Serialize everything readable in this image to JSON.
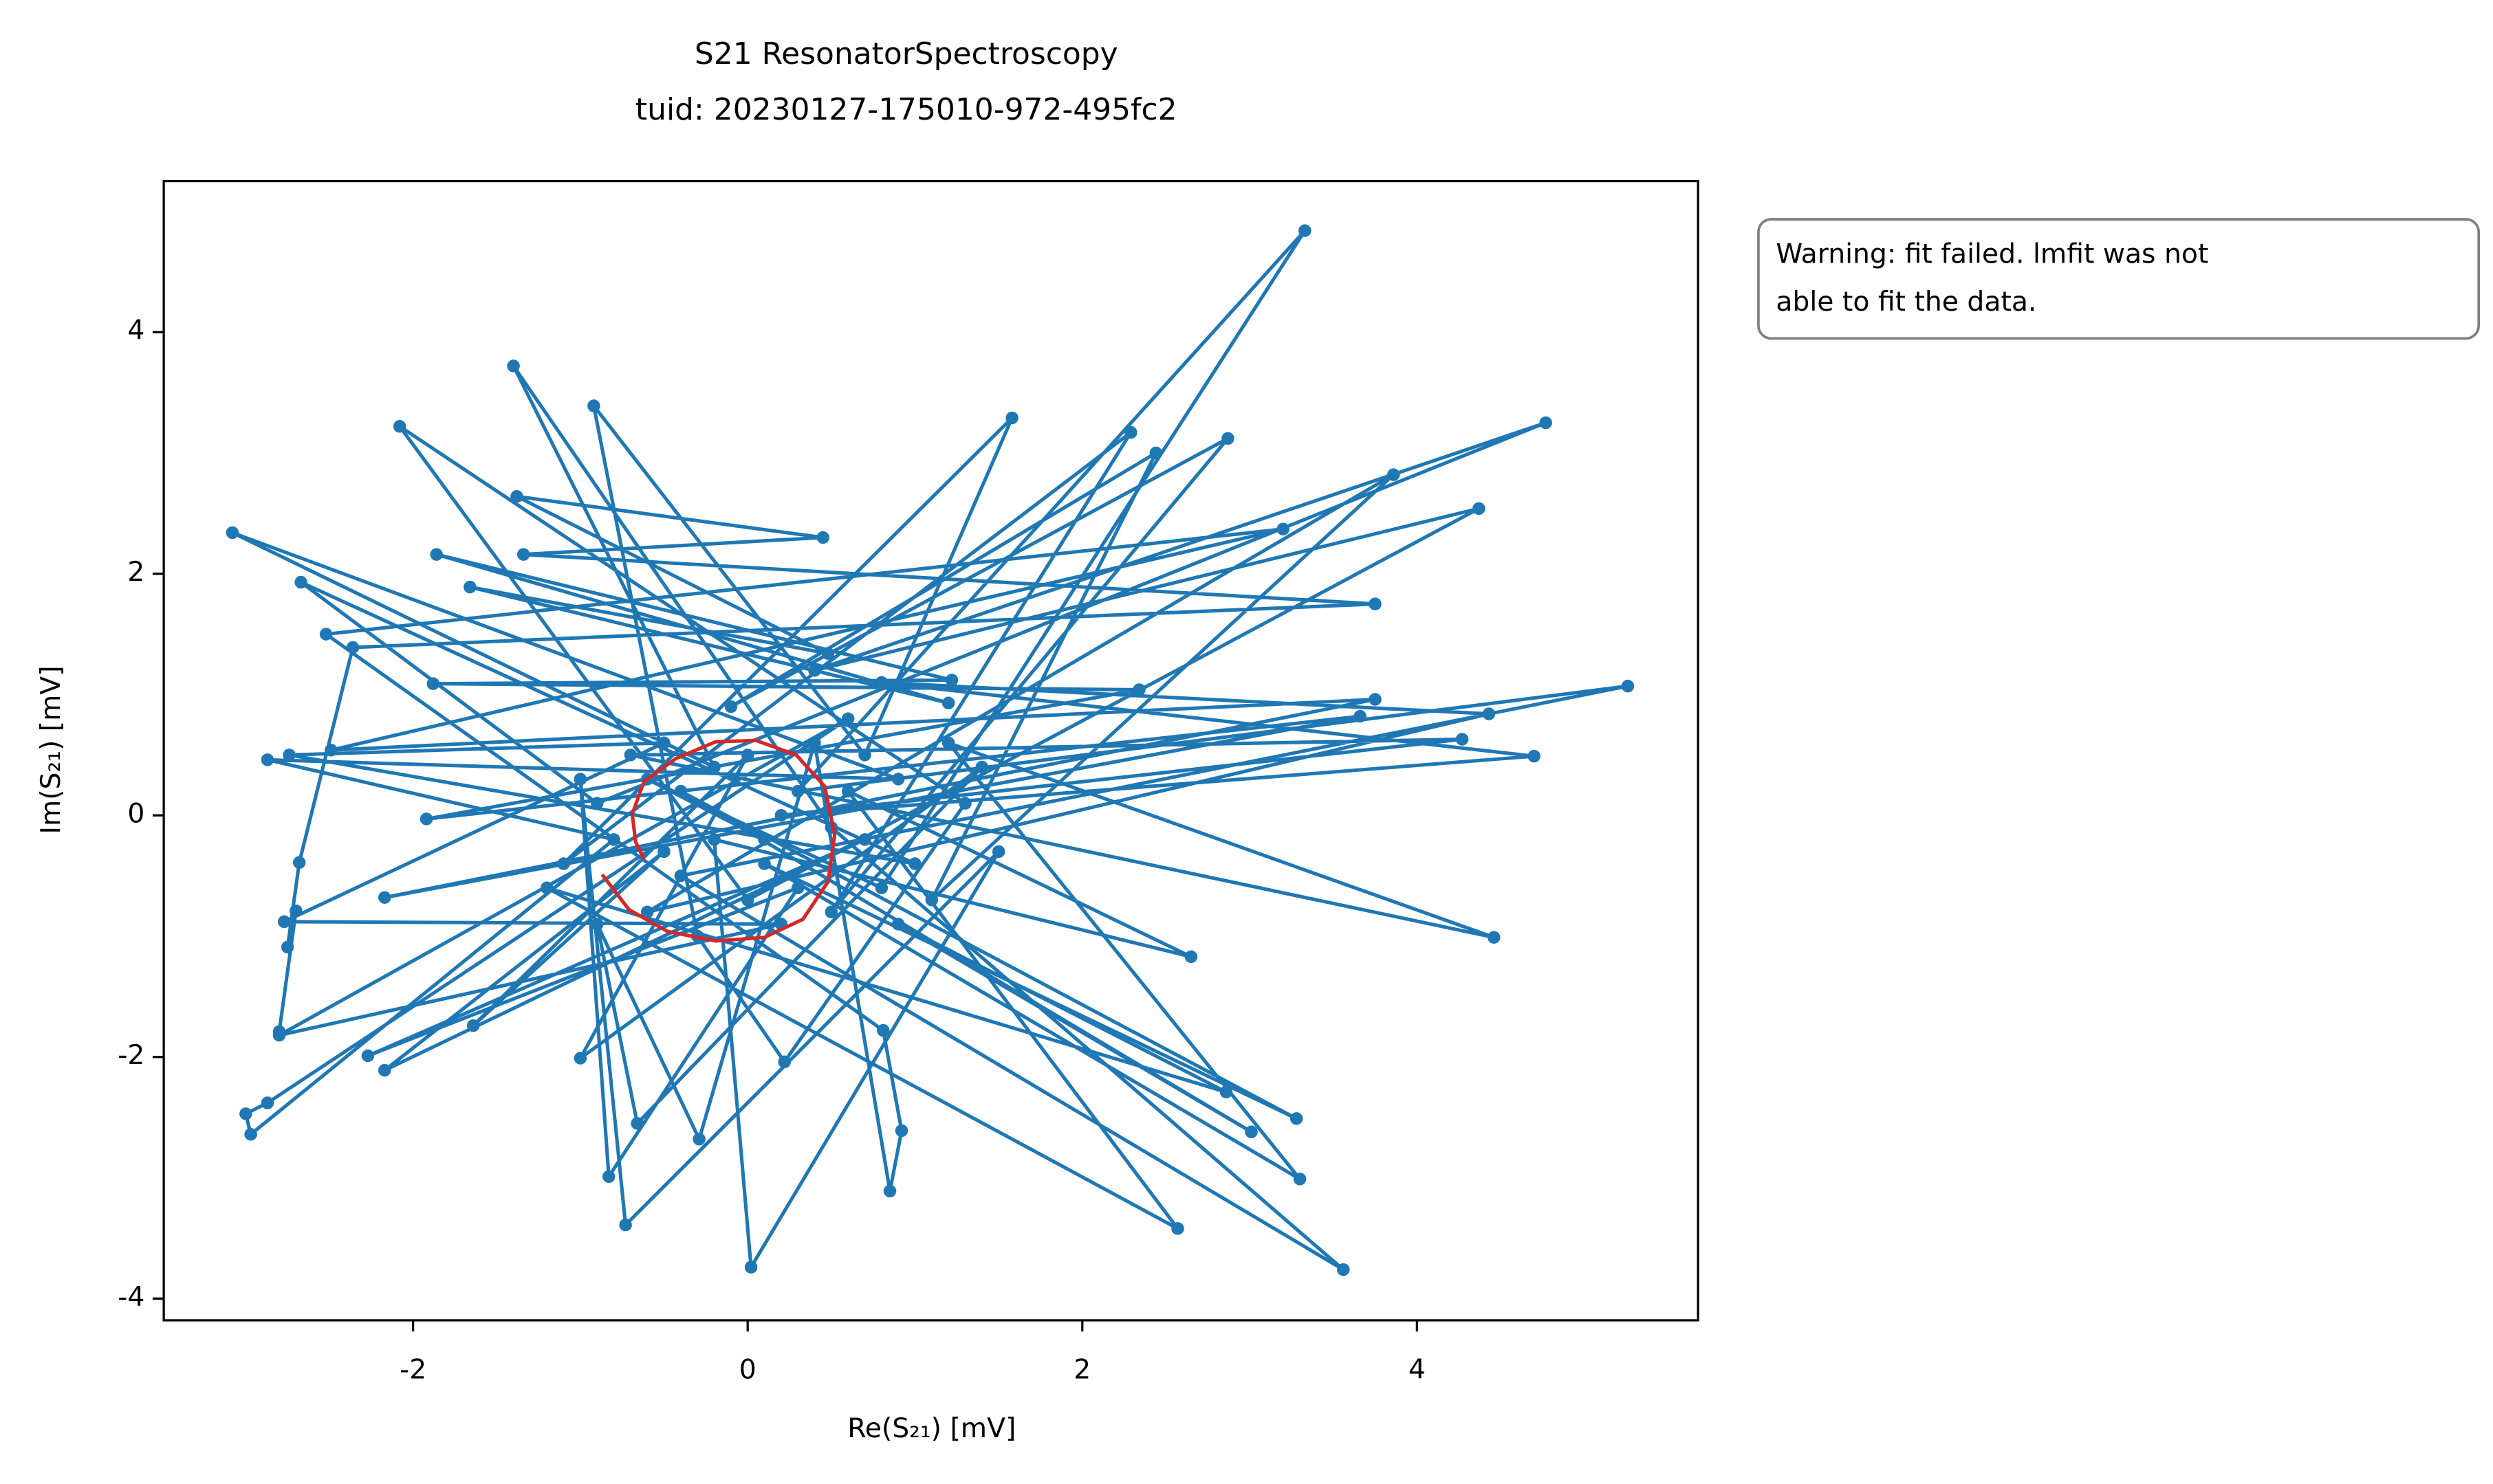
{
  "chart_data": {
    "type": "line",
    "title": "S21 ResonatorSpectroscopy",
    "subtitle": "tuid: 20230127-175010-972-495fc2",
    "xlabel": "Re(S₂₁) [mV]",
    "ylabel": "Im(S₂₁) [mV]",
    "annotation": [
      "Warning: fit failed. lmfit was not",
      "able to fit the data."
    ],
    "xlim": [
      -3.49,
      5.68
    ],
    "ylim": [
      -4.18,
      5.25
    ],
    "xticks": [
      -2,
      0,
      2,
      4
    ],
    "yticks": [
      -4,
      -2,
      0,
      2,
      4
    ],
    "series": [
      {
        "color": "#1f77b4",
        "markers": true,
        "x": [
          0.1,
          -0.6,
          0.8,
          3.33,
          0.3,
          5.26,
          -0.4,
          3.56,
          0.5,
          -1.4,
          -0.2,
          -3.08,
          0.9,
          -2.87,
          -0.8,
          -2.97,
          -3.0,
          -2.87,
          0.6,
          -2.8,
          0.2,
          -2.77,
          -0.5,
          -2.74,
          1.0,
          -2.67,
          -0.9,
          4.77,
          0.4,
          4.37,
          0.0,
          -2.08,
          1.3,
          0.22,
          -0.3,
          -0.92,
          0.7,
          1.58,
          -1.1,
          2.29,
          0.5,
          2.87,
          -0.1,
          2.44,
          1.1,
          3.86,
          -0.6,
          4.43,
          0.8,
          4.7,
          0.2,
          4.27,
          -0.7,
          4.46,
          1.2,
          3.3,
          0.1,
          3.28,
          -0.4,
          3.01,
          0.9,
          2.86,
          -1.2,
          2.57,
          0.6,
          2.65,
          -0.2,
          0.02,
          1.5,
          -0.73,
          -1.0,
          -0.83,
          0.3,
          -2.27,
          0.7,
          -2.17,
          -0.5,
          -1.64,
          0.0,
          -1.0,
          1.4,
          -0.66,
          -0.9,
          -0.29,
          0.4,
          0.85,
          0.92,
          0.81,
          -2.52,
          3.2,
          -2.49,
          3.75,
          -2.17,
          3.66,
          -1.92,
          2.34,
          -1.88,
          1.22,
          -1.86,
          1.2,
          -1.66,
          0.48,
          -1.38,
          0.45,
          -1.34,
          3.75,
          -2.36,
          -2.68,
          -2.75,
          -2.7,
          -2.8
        ],
        "values": [
          -0.2,
          0.3,
          -0.6,
          4.84,
          0.2,
          1.07,
          -0.5,
          -3.76,
          -0.1,
          3.72,
          0.4,
          2.34,
          0.3,
          0.46,
          -0.2,
          -2.64,
          -2.47,
          -2.38,
          0.8,
          -1.82,
          -0.9,
          -0.88,
          0.6,
          0.5,
          -0.4,
          1.93,
          0.1,
          3.25,
          1.2,
          2.54,
          -0.7,
          3.22,
          0.1,
          -2.04,
          -1.0,
          3.39,
          0.5,
          3.29,
          -0.4,
          3.17,
          -0.8,
          3.12,
          0.9,
          3.0,
          -0.7,
          2.82,
          -0.8,
          0.84,
          1.1,
          0.49,
          0.0,
          0.63,
          0.5,
          -1.01,
          0.6,
          -3.01,
          -0.4,
          -2.51,
          0.2,
          -2.62,
          -0.9,
          -2.29,
          -0.6,
          -3.42,
          0.2,
          -1.17,
          -0.2,
          -3.74,
          -0.3,
          -3.39,
          0.3,
          -2.99,
          -0.6,
          -1.99,
          -0.2,
          -2.11,
          -0.3,
          -1.74,
          0.5,
          -2.01,
          0.4,
          -2.55,
          -0.9,
          -2.68,
          0.6,
          -3.11,
          -2.61,
          -1.78,
          1.5,
          2.37,
          0.54,
          0.96,
          -0.68,
          0.82,
          -0.03,
          1.04,
          1.09,
          1.12,
          2.16,
          0.93,
          1.89,
          1.34,
          2.64,
          2.3,
          2.16,
          1.75,
          1.39,
          -0.39,
          -1.09,
          -0.79,
          -1.79
        ]
      },
      {
        "color": "#d62728",
        "markers": false,
        "x": [
          -0.87,
          -0.71,
          -0.48,
          -0.19,
          0.1,
          0.33,
          0.48,
          0.52,
          0.46,
          0.29,
          0.05,
          -0.19,
          -0.43,
          -0.62,
          -0.69,
          -0.67,
          -0.62
        ],
        "values": [
          -0.49,
          -0.78,
          -0.96,
          -1.04,
          -1.01,
          -0.86,
          -0.55,
          -0.16,
          0.24,
          0.5,
          0.62,
          0.61,
          0.47,
          0.28,
          0.01,
          -0.22,
          -0.36
        ]
      }
    ]
  }
}
